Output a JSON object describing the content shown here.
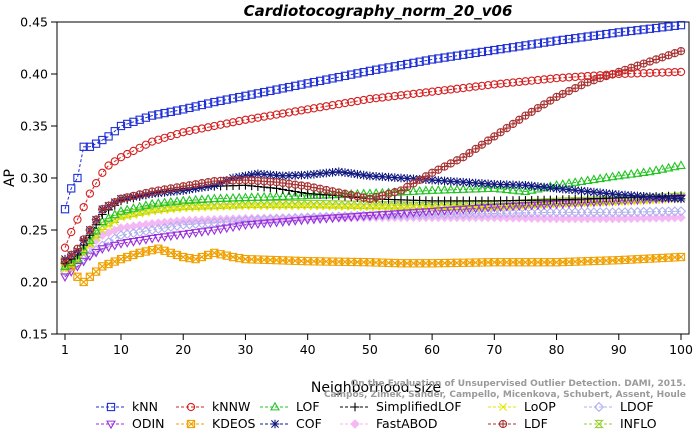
{
  "chart_data": {
    "type": "line",
    "title": "Cardiotocography_norm_20_v06",
    "xlabel": "Neighborhood size",
    "ylabel": "AP",
    "xlim": [
      1,
      100
    ],
    "ylim": [
      0.15,
      0.45
    ],
    "xticks": [
      1,
      10,
      20,
      30,
      40,
      50,
      60,
      70,
      80,
      90,
      100
    ],
    "yticks": [
      0.15,
      0.2,
      0.25,
      0.3,
      0.35,
      0.4,
      0.45
    ],
    "ytick_labels": [
      "0.15",
      "0.20",
      "0.25",
      "0.30",
      "0.35",
      "0.40",
      "0.45"
    ],
    "grid": false,
    "legend_position": "bottom",
    "watermark_lines": [
      "On the Evaluation of Unsupervised Outlier Detection. DAMI, 2015.",
      "Campos, Zimek, Sander, Campello, Micenkova, Schubert, Assent, Houle"
    ],
    "series": [
      {
        "name": "kNN",
        "color": "#1f2fd6",
        "marker": "square",
        "points": [
          [
            1,
            0.27
          ],
          [
            2,
            0.29
          ],
          [
            3,
            0.3
          ],
          [
            4,
            0.33
          ],
          [
            5,
            0.33
          ],
          [
            6,
            0.333
          ],
          [
            8,
            0.34
          ],
          [
            10,
            0.35
          ],
          [
            15,
            0.36
          ],
          [
            20,
            0.366
          ],
          [
            25,
            0.373
          ],
          [
            30,
            0.379
          ],
          [
            35,
            0.385
          ],
          [
            40,
            0.391
          ],
          [
            50,
            0.403
          ],
          [
            60,
            0.414
          ],
          [
            70,
            0.423
          ],
          [
            80,
            0.432
          ],
          [
            90,
            0.44
          ],
          [
            100,
            0.447
          ]
        ]
      },
      {
        "name": "kNNW",
        "color": "#d62020",
        "marker": "circle",
        "points": [
          [
            1,
            0.233
          ],
          [
            2,
            0.248
          ],
          [
            3,
            0.26
          ],
          [
            4,
            0.272
          ],
          [
            5,
            0.285
          ],
          [
            6,
            0.295
          ],
          [
            7,
            0.305
          ],
          [
            8,
            0.312
          ],
          [
            10,
            0.32
          ],
          [
            15,
            0.335
          ],
          [
            20,
            0.344
          ],
          [
            25,
            0.35
          ],
          [
            30,
            0.356
          ],
          [
            35,
            0.361
          ],
          [
            40,
            0.366
          ],
          [
            50,
            0.376
          ],
          [
            60,
            0.383
          ],
          [
            70,
            0.39
          ],
          [
            80,
            0.396
          ],
          [
            90,
            0.4
          ],
          [
            100,
            0.402
          ]
        ]
      },
      {
        "name": "LOF",
        "color": "#22c422",
        "marker": "triangle-up",
        "points": [
          [
            1,
            0.215
          ],
          [
            3,
            0.222
          ],
          [
            5,
            0.24
          ],
          [
            7,
            0.258
          ],
          [
            10,
            0.268
          ],
          [
            15,
            0.275
          ],
          [
            20,
            0.278
          ],
          [
            25,
            0.28
          ],
          [
            30,
            0.281
          ],
          [
            40,
            0.283
          ],
          [
            50,
            0.285
          ],
          [
            60,
            0.288
          ],
          [
            70,
            0.29
          ],
          [
            75,
            0.287
          ],
          [
            80,
            0.293
          ],
          [
            90,
            0.302
          ],
          [
            95,
            0.306
          ],
          [
            100,
            0.312
          ]
        ]
      },
      {
        "name": "SimplifiedLOF",
        "color": "#000000",
        "marker": "plus",
        "points": [
          [
            1,
            0.218
          ],
          [
            3,
            0.226
          ],
          [
            5,
            0.245
          ],
          [
            7,
            0.265
          ],
          [
            10,
            0.278
          ],
          [
            15,
            0.285
          ],
          [
            20,
            0.29
          ],
          [
            25,
            0.292
          ],
          [
            30,
            0.293
          ],
          [
            35,
            0.29
          ],
          [
            40,
            0.285
          ],
          [
            45,
            0.283
          ],
          [
            50,
            0.28
          ],
          [
            60,
            0.278
          ],
          [
            70,
            0.278
          ],
          [
            80,
            0.279
          ],
          [
            90,
            0.281
          ],
          [
            100,
            0.283
          ]
        ]
      },
      {
        "name": "LoOP",
        "color": "#e6e600",
        "marker": "x",
        "points": [
          [
            1,
            0.212
          ],
          [
            3,
            0.22
          ],
          [
            5,
            0.236
          ],
          [
            7,
            0.25
          ],
          [
            10,
            0.262
          ],
          [
            15,
            0.268
          ],
          [
            20,
            0.271
          ],
          [
            30,
            0.273
          ],
          [
            40,
            0.273
          ],
          [
            50,
            0.272
          ],
          [
            60,
            0.271
          ],
          [
            70,
            0.272
          ],
          [
            80,
            0.275
          ],
          [
            90,
            0.277
          ],
          [
            100,
            0.28
          ]
        ]
      },
      {
        "name": "LDOF",
        "color": "#b0b0ee",
        "marker": "diamond",
        "points": [
          [
            1,
            0.21
          ],
          [
            3,
            0.218
          ],
          [
            5,
            0.226
          ],
          [
            7,
            0.235
          ],
          [
            10,
            0.245
          ],
          [
            15,
            0.25
          ],
          [
            20,
            0.255
          ],
          [
            30,
            0.259
          ],
          [
            40,
            0.262
          ],
          [
            50,
            0.264
          ],
          [
            60,
            0.265
          ],
          [
            70,
            0.266
          ],
          [
            80,
            0.267
          ],
          [
            90,
            0.267
          ],
          [
            100,
            0.268
          ]
        ]
      },
      {
        "name": "ODIN",
        "color": "#9a2fdc",
        "marker": "triangle-down",
        "points": [
          [
            1,
            0.205
          ],
          [
            3,
            0.215
          ],
          [
            5,
            0.225
          ],
          [
            7,
            0.232
          ],
          [
            10,
            0.237
          ],
          [
            15,
            0.242
          ],
          [
            20,
            0.246
          ],
          [
            25,
            0.25
          ],
          [
            30,
            0.255
          ],
          [
            40,
            0.26
          ],
          [
            50,
            0.264
          ],
          [
            60,
            0.268
          ],
          [
            70,
            0.272
          ],
          [
            80,
            0.275
          ],
          [
            90,
            0.278
          ],
          [
            100,
            0.281
          ]
        ]
      },
      {
        "name": "KDEOS",
        "color": "#f0a000",
        "marker": "square-x",
        "points": [
          [
            1,
            0.22
          ],
          [
            2,
            0.215
          ],
          [
            3,
            0.205
          ],
          [
            4,
            0.2
          ],
          [
            5,
            0.205
          ],
          [
            7,
            0.215
          ],
          [
            10,
            0.222
          ],
          [
            13,
            0.228
          ],
          [
            16,
            0.232
          ],
          [
            18,
            0.228
          ],
          [
            20,
            0.224
          ],
          [
            22,
            0.222
          ],
          [
            25,
            0.228
          ],
          [
            28,
            0.224
          ],
          [
            30,
            0.222
          ],
          [
            40,
            0.22
          ],
          [
            50,
            0.219
          ],
          [
            55,
            0.218
          ],
          [
            60,
            0.218
          ],
          [
            70,
            0.219
          ],
          [
            80,
            0.219
          ],
          [
            90,
            0.221
          ],
          [
            100,
            0.224
          ]
        ]
      },
      {
        "name": "COF",
        "color": "#101880",
        "marker": "asterisk",
        "points": [
          [
            1,
            0.222
          ],
          [
            3,
            0.23
          ],
          [
            5,
            0.25
          ],
          [
            7,
            0.27
          ],
          [
            10,
            0.28
          ],
          [
            15,
            0.285
          ],
          [
            20,
            0.288
          ],
          [
            25,
            0.293
          ],
          [
            28,
            0.3
          ],
          [
            32,
            0.304
          ],
          [
            36,
            0.302
          ],
          [
            40,
            0.303
          ],
          [
            45,
            0.306
          ],
          [
            50,
            0.302
          ],
          [
            55,
            0.3
          ],
          [
            60,
            0.298
          ],
          [
            65,
            0.296
          ],
          [
            70,
            0.294
          ],
          [
            75,
            0.293
          ],
          [
            80,
            0.29
          ],
          [
            85,
            0.287
          ],
          [
            90,
            0.284
          ],
          [
            95,
            0.282
          ],
          [
            100,
            0.28
          ]
        ]
      },
      {
        "name": "FastABOD",
        "color": "#f4b8f4",
        "marker": "diamond-filled",
        "points": [
          [
            1,
            0.215
          ],
          [
            3,
            0.225
          ],
          [
            5,
            0.235
          ],
          [
            7,
            0.245
          ],
          [
            10,
            0.252
          ],
          [
            15,
            0.256
          ],
          [
            20,
            0.259
          ],
          [
            30,
            0.261
          ],
          [
            40,
            0.262
          ],
          [
            50,
            0.262
          ],
          [
            60,
            0.262
          ],
          [
            70,
            0.262
          ],
          [
            80,
            0.261
          ],
          [
            90,
            0.261
          ],
          [
            100,
            0.262
          ]
        ]
      },
      {
        "name": "LDF",
        "color": "#a83232",
        "marker": "circle-plus",
        "points": [
          [
            1,
            0.22
          ],
          [
            3,
            0.232
          ],
          [
            5,
            0.25
          ],
          [
            7,
            0.27
          ],
          [
            10,
            0.28
          ],
          [
            15,
            0.287
          ],
          [
            20,
            0.292
          ],
          [
            25,
            0.297
          ],
          [
            30,
            0.298
          ],
          [
            35,
            0.296
          ],
          [
            40,
            0.292
          ],
          [
            45,
            0.286
          ],
          [
            50,
            0.28
          ],
          [
            55,
            0.288
          ],
          [
            60,
            0.305
          ],
          [
            65,
            0.32
          ],
          [
            70,
            0.34
          ],
          [
            75,
            0.36
          ],
          [
            80,
            0.378
          ],
          [
            85,
            0.392
          ],
          [
            90,
            0.402
          ],
          [
            95,
            0.412
          ],
          [
            100,
            0.422
          ]
        ]
      },
      {
        "name": "INFLO",
        "color": "#9acd32",
        "marker": "hourglass",
        "points": [
          [
            1,
            0.215
          ],
          [
            3,
            0.222
          ],
          [
            5,
            0.238
          ],
          [
            7,
            0.254
          ],
          [
            10,
            0.264
          ],
          [
            15,
            0.27
          ],
          [
            20,
            0.273
          ],
          [
            30,
            0.275
          ],
          [
            40,
            0.275
          ],
          [
            50,
            0.274
          ],
          [
            60,
            0.273
          ],
          [
            70,
            0.274
          ],
          [
            80,
            0.277
          ],
          [
            90,
            0.279
          ],
          [
            100,
            0.282
          ]
        ]
      }
    ],
    "legend_rows": [
      [
        "kNN",
        "kNNW",
        "LOF",
        "SimplifiedLOF",
        "LoOP",
        "LDOF"
      ],
      [
        "ODIN",
        "KDEOS",
        "COF",
        "FastABOD",
        "LDF",
        "INFLO"
      ]
    ]
  }
}
